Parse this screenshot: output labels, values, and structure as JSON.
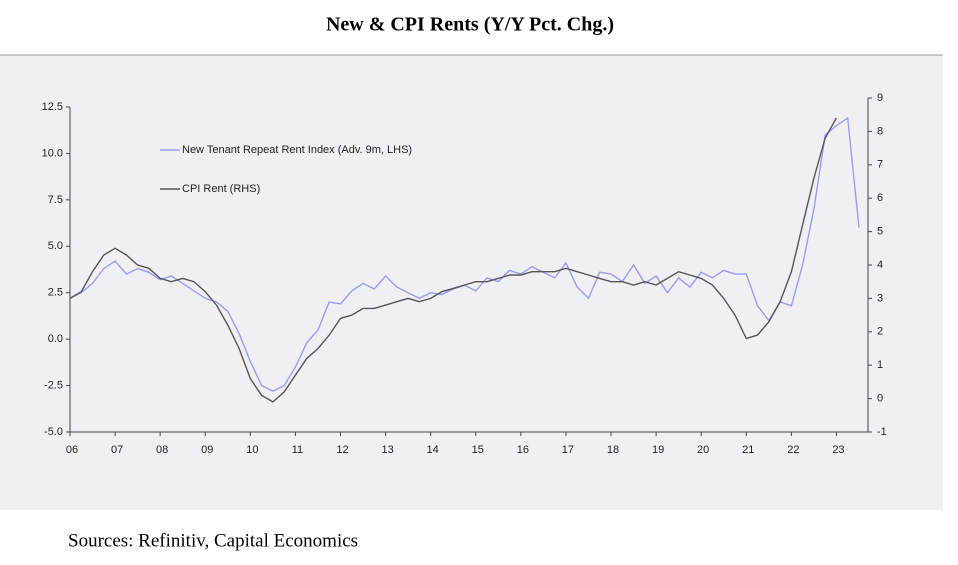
{
  "chart_data": {
    "type": "line",
    "title": "New & CPI Rents (Y/Y Pct. Chg.)",
    "source": "Sources: Refinitiv, Capital Economics",
    "x": [
      2006,
      2006.25,
      2006.5,
      2006.75,
      2007,
      2007.25,
      2007.5,
      2007.75,
      2008,
      2008.25,
      2008.5,
      2008.75,
      2009,
      2009.25,
      2009.5,
      2009.75,
      2010,
      2010.25,
      2010.5,
      2010.75,
      2011,
      2011.25,
      2011.5,
      2011.75,
      2012,
      2012.25,
      2012.5,
      2012.75,
      2013,
      2013.25,
      2013.5,
      2013.75,
      2014,
      2014.25,
      2014.5,
      2014.75,
      2015,
      2015.25,
      2015.5,
      2015.75,
      2016,
      2016.25,
      2016.5,
      2016.75,
      2017,
      2017.25,
      2017.5,
      2017.75,
      2018,
      2018.25,
      2018.5,
      2018.75,
      2019,
      2019.25,
      2019.5,
      2019.75,
      2020,
      2020.25,
      2020.5,
      2020.75,
      2021,
      2021.25,
      2021.5,
      2021.75,
      2022,
      2022.25,
      2022.5,
      2022.75,
      2023,
      2023.25,
      2023.5
    ],
    "series": [
      {
        "name": "New Tenant Repeat Rent Index (Adv. 9m, LHS)",
        "color": "#9a9af2",
        "axis": "y",
        "values": [
          2.2,
          2.5,
          3.0,
          3.8,
          4.2,
          3.5,
          3.8,
          3.6,
          3.2,
          3.4,
          3.0,
          2.6,
          2.2,
          2.0,
          1.5,
          0.3,
          -1.2,
          -2.5,
          -2.8,
          -2.5,
          -1.5,
          -0.2,
          0.5,
          2.0,
          1.9,
          2.6,
          3.0,
          2.7,
          3.4,
          2.8,
          2.5,
          2.2,
          2.5,
          2.4,
          2.7,
          2.9,
          2.6,
          3.3,
          3.1,
          3.7,
          3.5,
          3.9,
          3.6,
          3.3,
          4.1,
          2.8,
          2.2,
          3.6,
          3.5,
          3.1,
          4.0,
          3.0,
          3.4,
          2.5,
          3.3,
          2.8,
          3.6,
          3.3,
          3.7,
          3.5,
          3.5,
          1.8,
          1.0,
          2.0,
          1.8,
          4.0,
          7.0,
          11.0,
          11.5,
          11.9,
          6.0
        ]
      },
      {
        "name": "CPI Rent (RHS)",
        "color": "#555555",
        "axis": "y2",
        "values": [
          3.0,
          3.2,
          3.8,
          4.3,
          4.5,
          4.3,
          4.0,
          3.9,
          3.6,
          3.5,
          3.6,
          3.5,
          3.2,
          2.8,
          2.2,
          1.5,
          0.6,
          0.1,
          -0.1,
          0.2,
          0.7,
          1.2,
          1.5,
          1.9,
          2.4,
          2.5,
          2.7,
          2.7,
          2.8,
          2.9,
          3.0,
          2.9,
          3.0,
          3.2,
          3.3,
          3.4,
          3.5,
          3.5,
          3.6,
          3.7,
          3.7,
          3.8,
          3.8,
          3.8,
          3.9,
          3.8,
          3.7,
          3.6,
          3.5,
          3.5,
          3.4,
          3.5,
          3.4,
          3.6,
          3.8,
          3.7,
          3.6,
          3.4,
          3.0,
          2.5,
          1.8,
          1.9,
          2.3,
          2.9,
          3.8,
          5.2,
          6.6,
          7.8,
          8.4,
          null,
          null
        ]
      }
    ],
    "xlim": [
      2006,
      2023.7
    ],
    "xticks": [
      {
        "value": 2006,
        "label": "06"
      },
      {
        "value": 2007,
        "label": "07"
      },
      {
        "value": 2008,
        "label": "08"
      },
      {
        "value": 2009,
        "label": "09"
      },
      {
        "value": 2010,
        "label": "10"
      },
      {
        "value": 2011,
        "label": "11"
      },
      {
        "value": 2012,
        "label": "12"
      },
      {
        "value": 2013,
        "label": "13"
      },
      {
        "value": 2014,
        "label": "14"
      },
      {
        "value": 2015,
        "label": "15"
      },
      {
        "value": 2016,
        "label": "16"
      },
      {
        "value": 2017,
        "label": "17"
      },
      {
        "value": 2018,
        "label": "18"
      },
      {
        "value": 2019,
        "label": "19"
      },
      {
        "value": 2020,
        "label": "20"
      },
      {
        "value": 2021,
        "label": "21"
      },
      {
        "value": 2022,
        "label": "22"
      },
      {
        "value": 2023,
        "label": "23"
      }
    ],
    "ylim": [
      -5,
      12.5
    ],
    "yticks": [
      {
        "value": -5,
        "label": "-5.0"
      },
      -2.5,
      {
        "value": 0,
        "label": "0.0"
      },
      2.5,
      {
        "value": 5,
        "label": "5.0"
      },
      7.5,
      {
        "value": 10,
        "label": "10.0"
      },
      12.5
    ],
    "y2lim": [
      -1,
      9
    ],
    "y2ticks": [
      -1,
      0,
      1,
      2,
      3,
      4,
      5,
      6,
      7,
      8,
      9
    ],
    "legend": "upper left",
    "grid": false
  }
}
